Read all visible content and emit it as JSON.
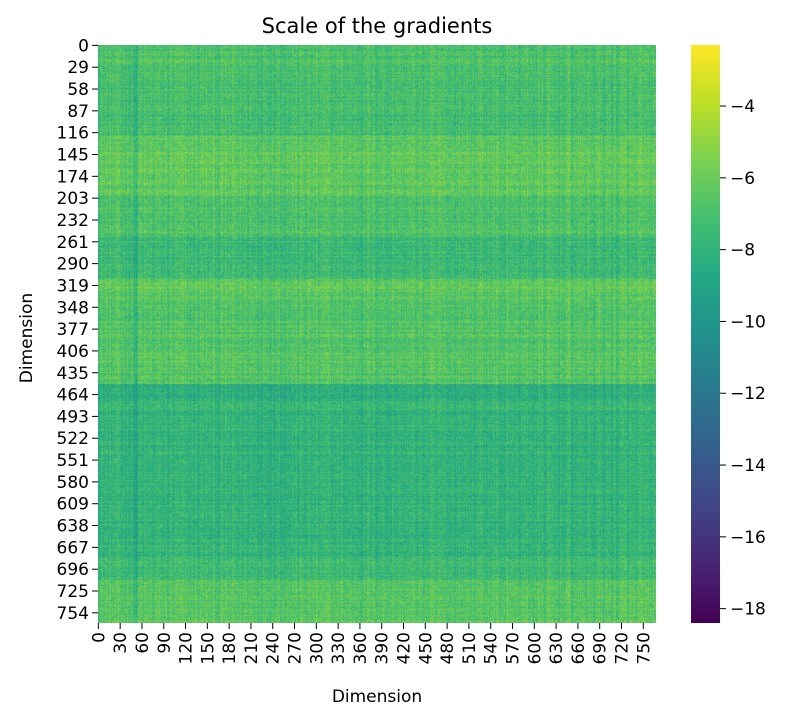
{
  "chart_data": {
    "type": "heatmap",
    "title": "Scale of the gradients",
    "xlabel": "Dimension",
    "ylabel": "Dimension",
    "rows": 768,
    "cols": 768,
    "x_ticks": [
      "0",
      "30",
      "60",
      "90",
      "120",
      "150",
      "180",
      "210",
      "240",
      "270",
      "300",
      "330",
      "360",
      "390",
      "420",
      "450",
      "480",
      "510",
      "540",
      "570",
      "600",
      "630",
      "660",
      "690",
      "720",
      "750"
    ],
    "y_ticks": [
      "0",
      "29",
      "58",
      "87",
      "116",
      "145",
      "174",
      "203",
      "232",
      "261",
      "290",
      "319",
      "348",
      "377",
      "406",
      "435",
      "464",
      "493",
      "522",
      "551",
      "580",
      "609",
      "638",
      "667",
      "696",
      "725",
      "754"
    ],
    "colorbar": {
      "colormap": "viridis",
      "range": [
        -18.4,
        -2.3
      ],
      "ticks": [
        -4,
        -6,
        -8,
        -10,
        -12,
        -14,
        -16,
        -18
      ],
      "tick_labels": [
        "−4",
        "−6",
        "−8",
        "−10",
        "−12",
        "−14",
        "−16",
        "−18"
      ]
    },
    "row_band_means": [
      {
        "from": 0,
        "to": 40,
        "mean": -7.0
      },
      {
        "from": 40,
        "to": 120,
        "mean": -7.2
      },
      {
        "from": 120,
        "to": 200,
        "mean": -6.4
      },
      {
        "from": 200,
        "to": 255,
        "mean": -6.9
      },
      {
        "from": 255,
        "to": 310,
        "mean": -7.6
      },
      {
        "from": 310,
        "to": 330,
        "mean": -6.5
      },
      {
        "from": 330,
        "to": 450,
        "mean": -6.7
      },
      {
        "from": 450,
        "to": 470,
        "mean": -8.3
      },
      {
        "from": 470,
        "to": 680,
        "mean": -7.9
      },
      {
        "from": 680,
        "to": 710,
        "mean": -7.3
      },
      {
        "from": 710,
        "to": 768,
        "mean": -6.6
      }
    ]
  }
}
